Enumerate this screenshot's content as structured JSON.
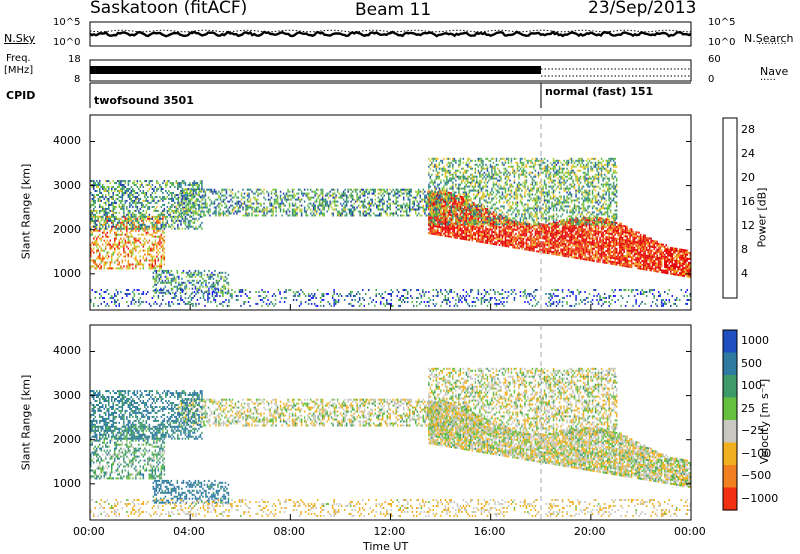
{
  "header": {
    "station": "Saskatoon (fitACF)",
    "beam": "Beam 11",
    "date": "23/Sep/2013"
  },
  "noise_panel": {
    "left_label": "N.Sky",
    "right_label": "N.Search",
    "left_ticks": [
      "10^5",
      "10^0"
    ],
    "right_ticks": [
      "10^5",
      "10^0"
    ]
  },
  "freq_panel": {
    "left_label_1": "Freq.",
    "left_label_2": "[MHz]",
    "left_ticks": [
      "18",
      "8"
    ],
    "right_label": "Nave",
    "right_ticks": [
      "60",
      "0"
    ]
  },
  "cpid_panel": {
    "label": "CPID",
    "modes": [
      {
        "name": "twofsound 3501",
        "start_hour": 0,
        "end_hour": 18
      },
      {
        "name": "normal (fast) 151",
        "start_hour": 18,
        "end_hour": 24
      }
    ]
  },
  "power_panel": {
    "ylabel": "Slant Range [km]",
    "yticks": [
      "1000",
      "2000",
      "3000",
      "4000"
    ],
    "colorbar_label": "Power [dB]",
    "colorbar_ticks": [
      "4",
      "8",
      "12",
      "16",
      "20",
      "24",
      "28"
    ],
    "colors": [
      "#2020ff",
      "#1e3fa8",
      "#2a7a9a",
      "#3f9a6a",
      "#55b845",
      "#a8d040",
      "#f0c020",
      "#f0a020",
      "#f06010",
      "#f01010",
      "#e00000"
    ]
  },
  "velocity_panel": {
    "ylabel": "Slant Range [km]",
    "yticks": [
      "1000",
      "2000",
      "3000",
      "4000"
    ],
    "colorbar_label": "Velocity [m s⁻¹]",
    "colorbar_ticks": [
      "1000",
      "500",
      "100",
      "25",
      "−25",
      "−100",
      "−500",
      "−1000"
    ],
    "colors": [
      "#2050c0",
      "#2e7aa0",
      "#3f9a6a",
      "#66c040",
      "#c8c8c0",
      "#f0b020",
      "#f08020",
      "#f03010",
      "#e00000"
    ]
  },
  "xaxis": {
    "label": "Time UT",
    "ticks": [
      "00:00",
      "04:00",
      "08:00",
      "12:00",
      "16:00",
      "20:00",
      "00:00"
    ]
  },
  "chart_data": {
    "type": "heatmap",
    "title": "Saskatoon (fitACF)   Beam 11   23/Sep/2013",
    "xlabel": "Time UT",
    "ylabel": "Slant Range [km]",
    "xlim_hours": [
      0,
      24
    ],
    "ylim_km": [
      180,
      4600
    ],
    "power_range_db": [
      0,
      30
    ],
    "velocity_range_ms": [
      -1000,
      1000
    ],
    "mode_change_hour": 18,
    "noise_sky_level": "approximately 10^3 throughout the day",
    "nave": "high (near 60) from 00:00 to 18:00, low after 18:00",
    "scatter_regions": [
      {
        "name": "ionospheric-band",
        "start_hour": 13.5,
        "end_hour": 24,
        "range_km": [
          900,
          1900
        ],
        "power_db": 26,
        "velocity_ms": 0
      },
      {
        "name": "morning-band",
        "start_hour": 0,
        "end_hour": 3.0,
        "range_km": [
          1100,
          2300
        ],
        "power_db": 20,
        "velocity_ms": 60
      },
      {
        "name": "upper-band",
        "start_hour": 3.5,
        "end_hour": 14,
        "range_km": [
          2300,
          2900
        ],
        "power_db": 10,
        "velocity_ms": 0
      },
      {
        "name": "morning-upper",
        "start_hour": 0,
        "end_hour": 4.5,
        "range_km": [
          2000,
          3100
        ],
        "power_db": 10,
        "velocity_ms": 120
      },
      {
        "name": "afternoon-patches",
        "start_hour": 13.5,
        "end_hour": 21,
        "range_km": [
          2100,
          3600
        ],
        "power_db": 12,
        "velocity_ms": 0
      },
      {
        "name": "trail",
        "start_hour": 2.5,
        "end_hour": 5.5,
        "range_km": [
          550,
          1050
        ],
        "power_db": 9,
        "velocity_ms": 150
      },
      {
        "name": "ground-clutter",
        "start_hour": 0,
        "end_hour": 24,
        "range_km": [
          250,
          650
        ],
        "power_db": 6,
        "velocity_ms": -30
      }
    ]
  }
}
